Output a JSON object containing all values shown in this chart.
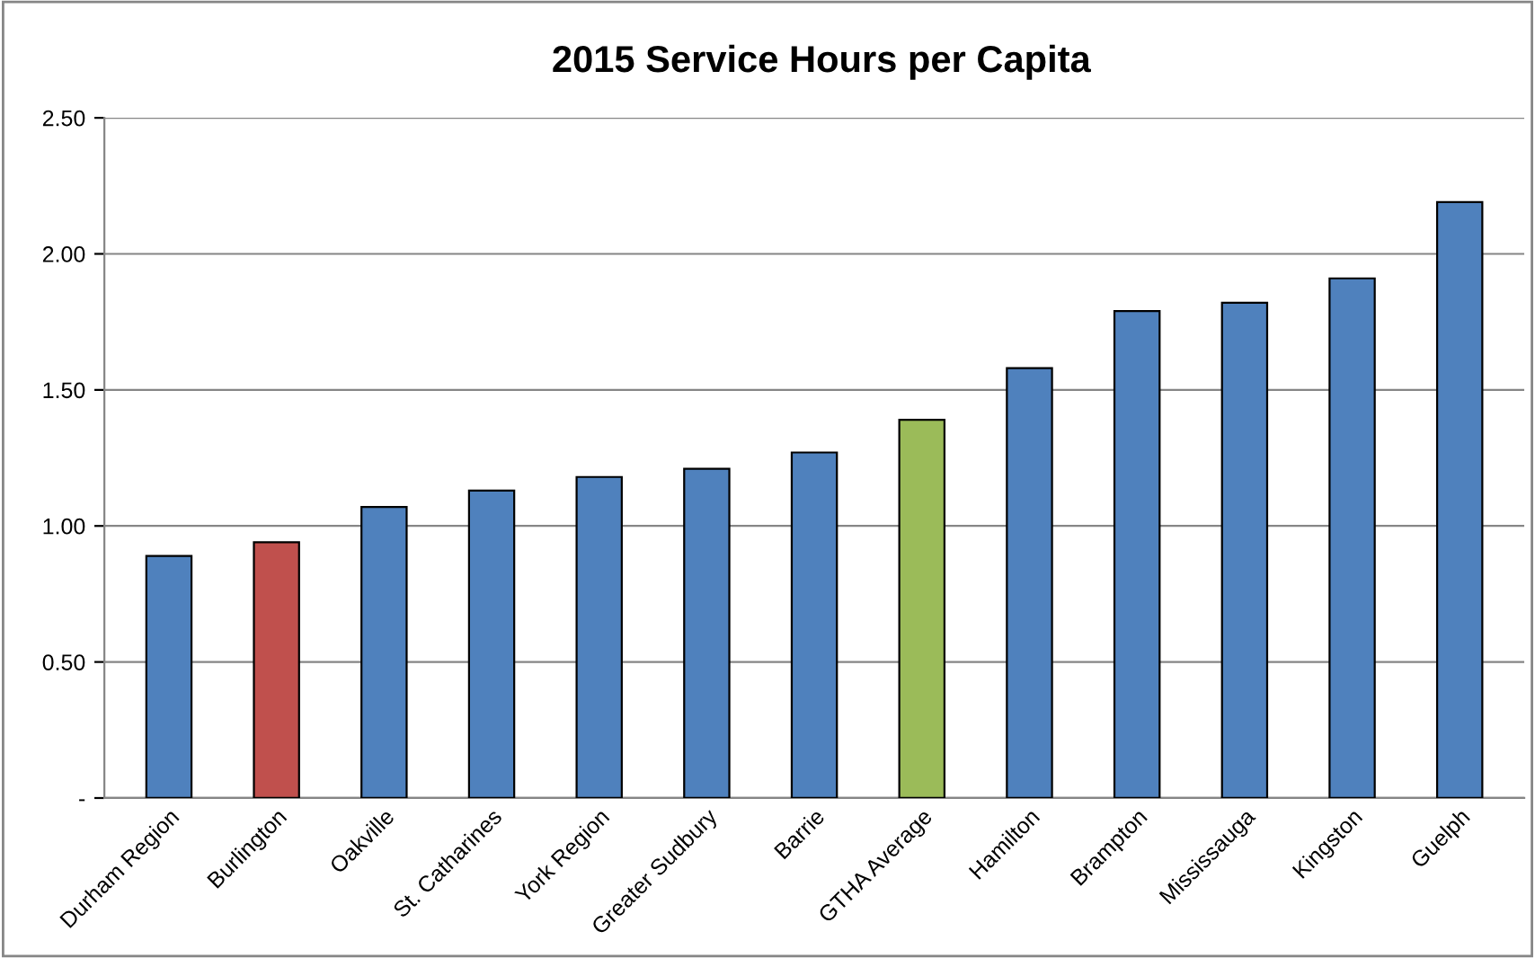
{
  "chart_data": {
    "type": "bar",
    "title": "2015 Service Hours per Capita",
    "categories": [
      "Durham Region",
      "Burlington",
      "Oakville",
      "St. Catharines",
      "York Region",
      "Greater Sudbury",
      "Barrie",
      "GTHA Average",
      "Hamilton",
      "Brampton",
      "Mississauga",
      "Kingston",
      "Guelph"
    ],
    "values": [
      0.89,
      0.94,
      1.07,
      1.13,
      1.18,
      1.21,
      1.27,
      1.39,
      1.58,
      1.79,
      1.82,
      1.91,
      2.19
    ],
    "colors": [
      "#4f81bd",
      "#c0504d",
      "#4f81bd",
      "#4f81bd",
      "#4f81bd",
      "#4f81bd",
      "#4f81bd",
      "#9bbb59",
      "#4f81bd",
      "#4f81bd",
      "#4f81bd",
      "#4f81bd",
      "#4f81bd"
    ],
    "ylim": [
      0,
      2.5
    ],
    "yticks": [
      {
        "value": 0,
        "label": "-"
      },
      {
        "value": 0.5,
        "label": "0.50"
      },
      {
        "value": 1,
        "label": "1.00"
      },
      {
        "value": 1.5,
        "label": "1.50"
      },
      {
        "value": 2,
        "label": "2.00"
      },
      {
        "value": 2.5,
        "label": "2.50"
      }
    ],
    "grid": "y"
  }
}
